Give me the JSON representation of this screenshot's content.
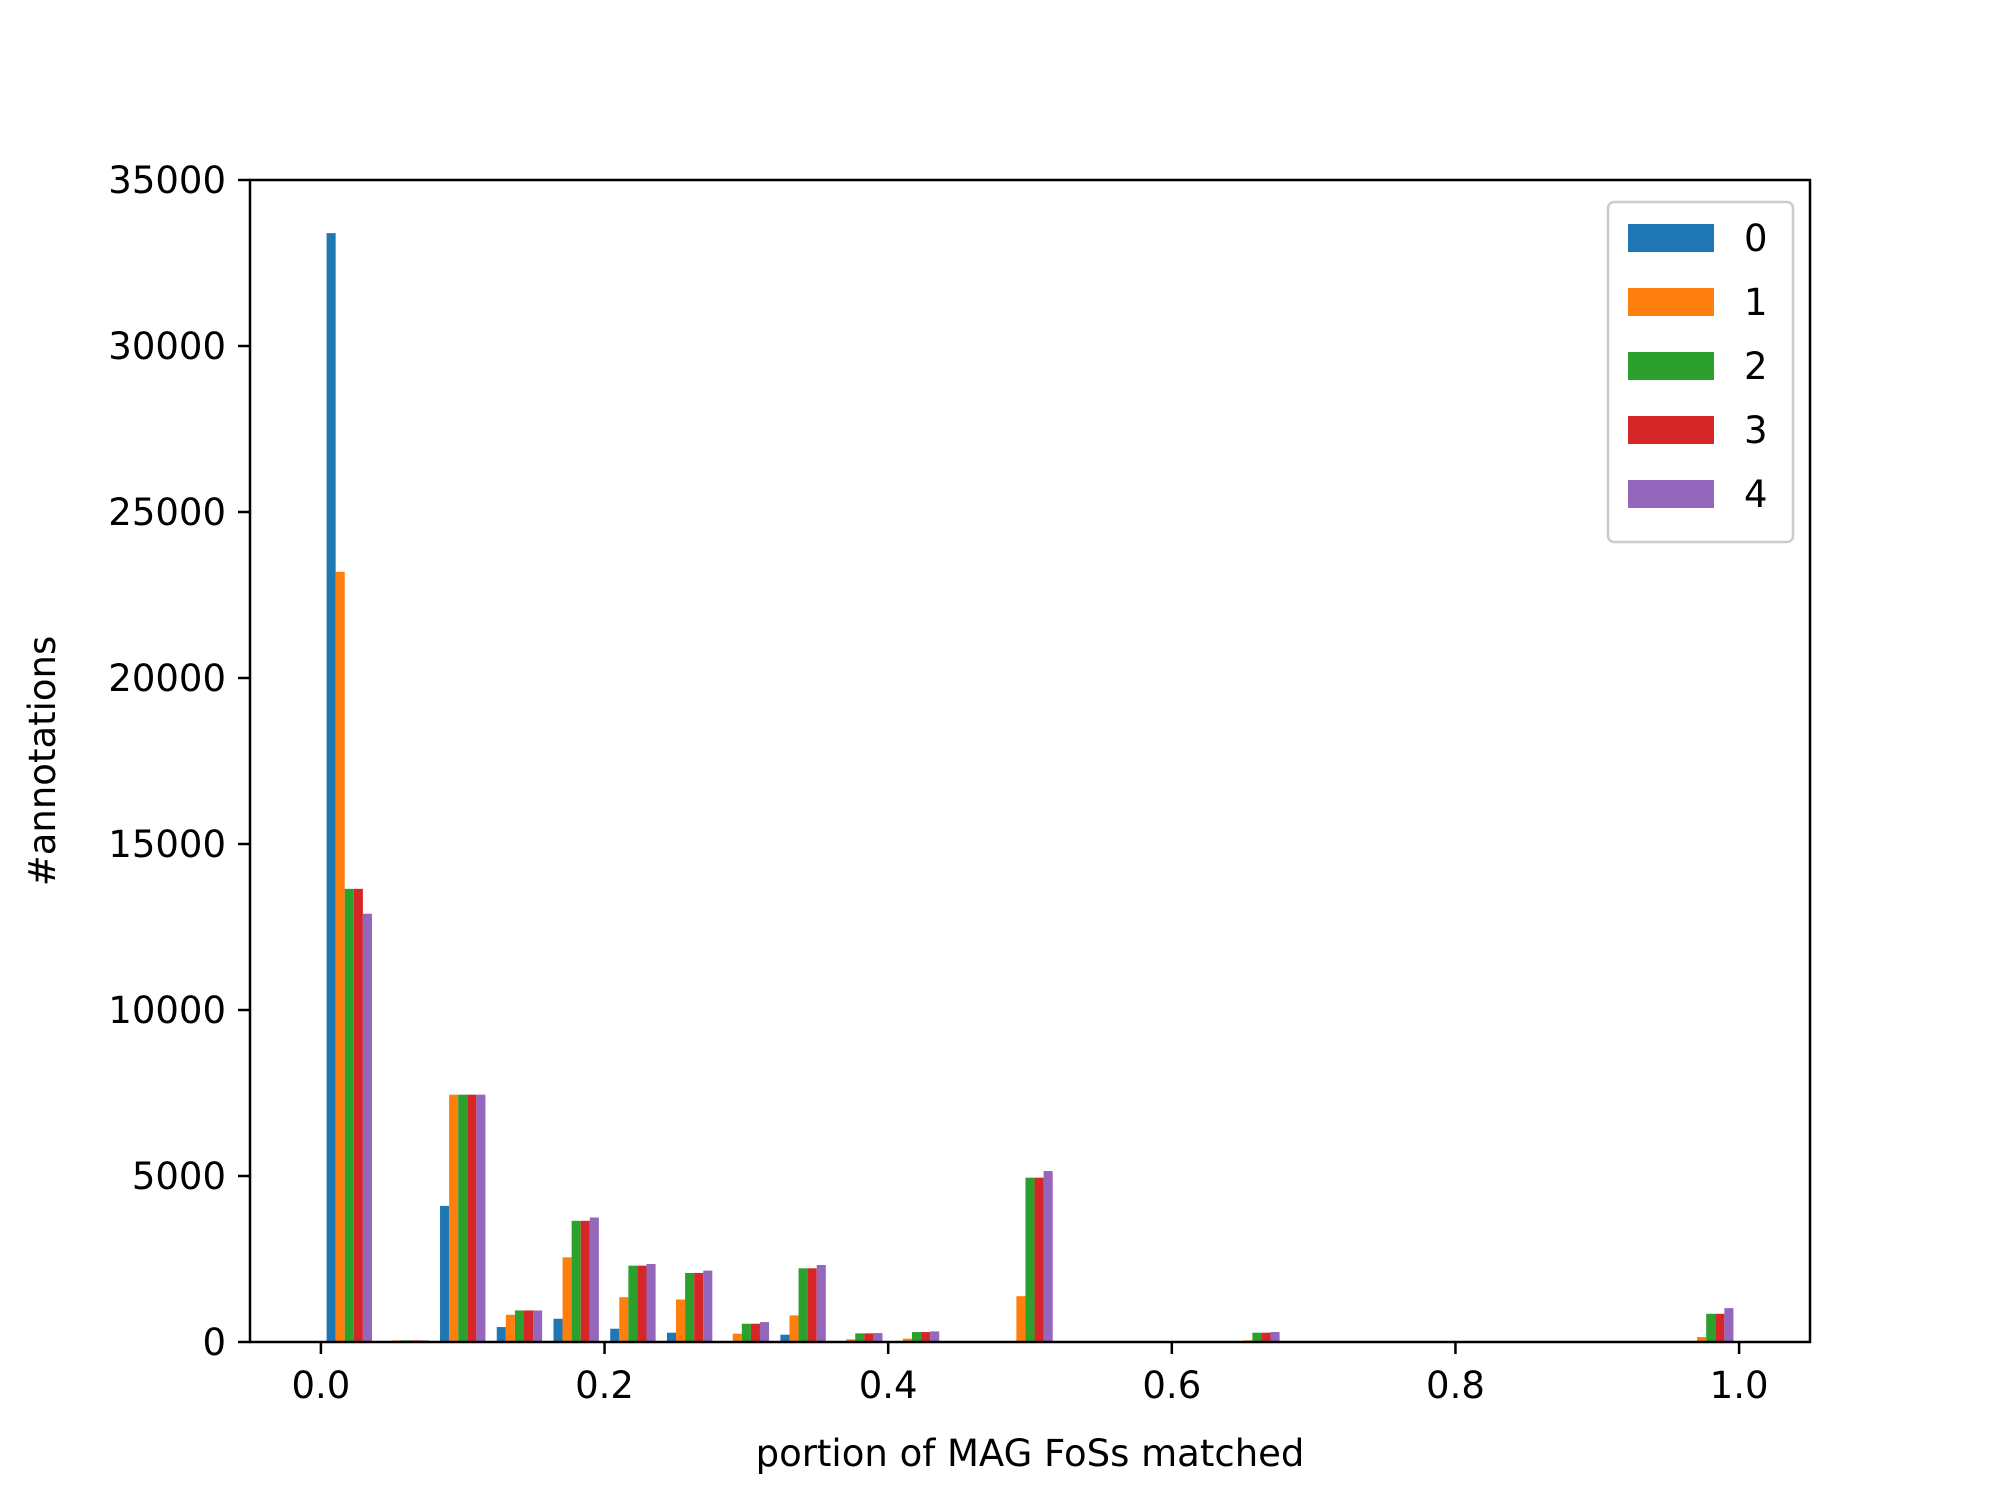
{
  "chart_data": {
    "type": "bar",
    "title": "",
    "xlabel": "portion of MAG FoSs matched",
    "ylabel": "#annotations",
    "xlim": [
      -0.05,
      1.05
    ],
    "ylim": [
      0,
      35000
    ],
    "xticks": [
      0.0,
      0.2,
      0.4,
      0.6,
      0.8,
      1.0
    ],
    "xtick_labels": [
      "0.0",
      "0.2",
      "0.4",
      "0.6",
      "0.8",
      "1.0"
    ],
    "yticks": [
      0,
      5000,
      10000,
      15000,
      20000,
      25000,
      30000,
      35000
    ],
    "ytick_labels": [
      "0",
      "5000",
      "10000",
      "15000",
      "20000",
      "25000",
      "30000",
      "35000"
    ],
    "bins": {
      "start": 0.0,
      "end": 1.0,
      "count": 25
    },
    "grid": false,
    "legend_position": "upper right",
    "series": [
      {
        "name": "0",
        "color": "#1f77b4",
        "values": [
          33400,
          0,
          4100,
          450,
          700,
          400,
          280,
          0,
          220,
          0,
          0,
          0,
          0,
          0,
          0,
          0,
          0,
          0,
          0,
          0,
          0,
          0,
          0,
          0,
          0
        ]
      },
      {
        "name": "1",
        "color": "#ff7f0e",
        "values": [
          23200,
          50,
          7450,
          820,
          2550,
          1350,
          1280,
          250,
          800,
          80,
          100,
          0,
          1380,
          0,
          0,
          0,
          50,
          0,
          0,
          0,
          0,
          0,
          0,
          0,
          150
        ]
      },
      {
        "name": "2",
        "color": "#2ca02c",
        "values": [
          13650,
          50,
          7450,
          950,
          3650,
          2300,
          2080,
          550,
          2220,
          260,
          300,
          0,
          4950,
          0,
          0,
          0,
          280,
          0,
          0,
          0,
          0,
          0,
          0,
          0,
          850
        ]
      },
      {
        "name": "3",
        "color": "#d62728",
        "values": [
          13650,
          50,
          7450,
          950,
          3650,
          2300,
          2080,
          550,
          2220,
          260,
          300,
          0,
          4950,
          0,
          0,
          0,
          280,
          0,
          0,
          0,
          0,
          0,
          0,
          0,
          850
        ]
      },
      {
        "name": "4",
        "color": "#9467bd",
        "values": [
          12900,
          50,
          7450,
          950,
          3750,
          2350,
          2150,
          600,
          2320,
          270,
          320,
          0,
          5150,
          0,
          0,
          0,
          300,
          0,
          0,
          0,
          0,
          0,
          0,
          0,
          1020
        ]
      }
    ]
  }
}
